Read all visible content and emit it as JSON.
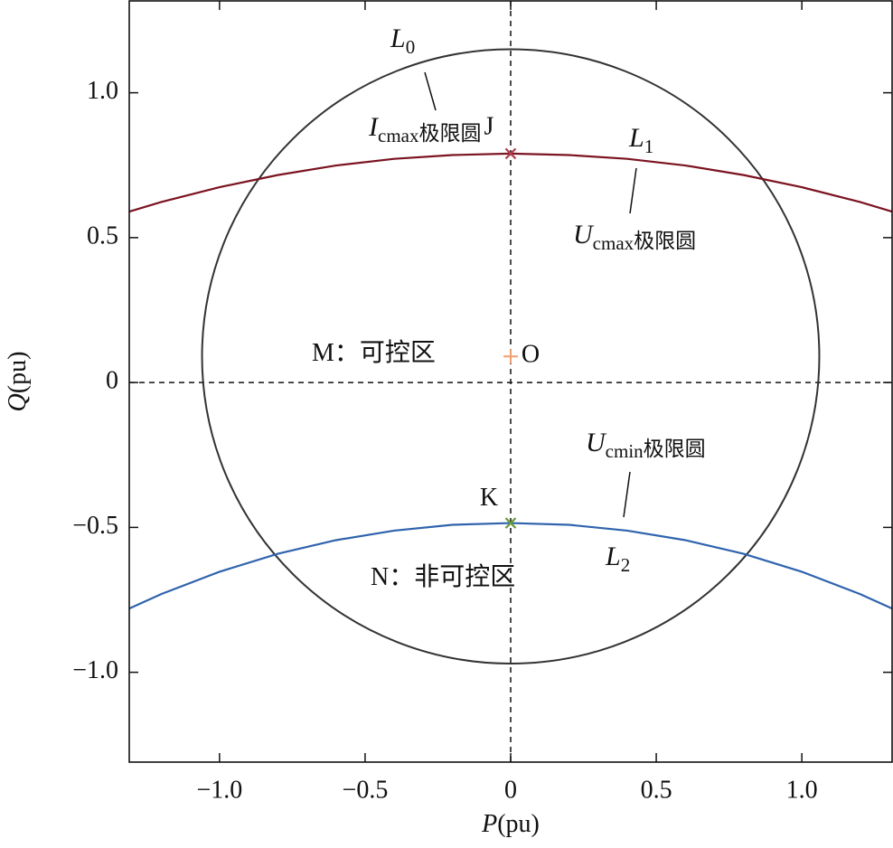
{
  "chart_data": {
    "type": "line",
    "xlabel": {
      "italic": "P",
      "text": "(pu)"
    },
    "ylabel": {
      "italic": "Q",
      "text": "(pu)"
    },
    "xlim": [
      -1.31,
      1.31
    ],
    "ylim": [
      -1.31,
      1.317
    ],
    "xticks": [
      {
        "value": -1,
        "label": "−1.0"
      },
      {
        "value": -0.5,
        "label": "−0.5"
      },
      0,
      0.5,
      {
        "value": 1,
        "label": "1.0"
      }
    ],
    "yticks": [
      {
        "value": -1,
        "label": "−1.0"
      },
      {
        "value": -0.5,
        "label": "−0.5"
      },
      0,
      0.5,
      {
        "value": 1,
        "label": "1.0"
      }
    ],
    "ref_lines": {
      "x": 0,
      "y": 0
    },
    "x": [
      -1.31,
      -1.2,
      -1.0,
      -0.8,
      -0.6,
      -0.4,
      -0.2,
      0,
      0.2,
      0.4,
      0.6,
      0.8,
      1.0,
      1.2,
      1.31
    ],
    "series": [
      {
        "name": "L1",
        "color": "#7b1320",
        "values": [
          0.59,
          0.623,
          0.674,
          0.716,
          0.749,
          0.772,
          0.785,
          0.79,
          0.785,
          0.772,
          0.749,
          0.716,
          0.674,
          0.623,
          0.59
        ]
      },
      {
        "name": "L2",
        "color": "#2f63ad",
        "values": [
          -0.78,
          -0.73,
          -0.653,
          -0.591,
          -0.544,
          -0.511,
          -0.491,
          -0.485,
          -0.491,
          -0.511,
          -0.544,
          -0.591,
          -0.653,
          -0.73,
          -0.78
        ]
      }
    ],
    "circle": {
      "name": "L0",
      "color": "#333333",
      "cx": 0,
      "cy": 0.09,
      "r": 1.06
    },
    "points": [
      {
        "label": "J",
        "x": 0,
        "y": 0.79,
        "color": "#b04050",
        "marker": "x"
      },
      {
        "label": "K",
        "x": 0,
        "y": -0.485,
        "color": "#6a9a3a",
        "marker": "x"
      },
      {
        "label": "O",
        "x": 0,
        "y": 0.09,
        "color": "#f0a070",
        "marker": "+"
      }
    ],
    "annotations": [
      {
        "italic": "L",
        "sub": "0"
      },
      {
        "italic": "I",
        "sub": "cmax",
        "text": "极限圆"
      },
      {
        "italic": "L",
        "sub": "1"
      },
      {
        "italic": "U",
        "sub": "cmax",
        "text": "极限圆"
      },
      {
        "italic": "U",
        "sub": "cmin",
        "text": "极限圆"
      },
      {
        "italic": "L",
        "sub": "2"
      },
      {
        "text": "M：可控区"
      },
      {
        "text": "N：非可控区"
      }
    ]
  }
}
